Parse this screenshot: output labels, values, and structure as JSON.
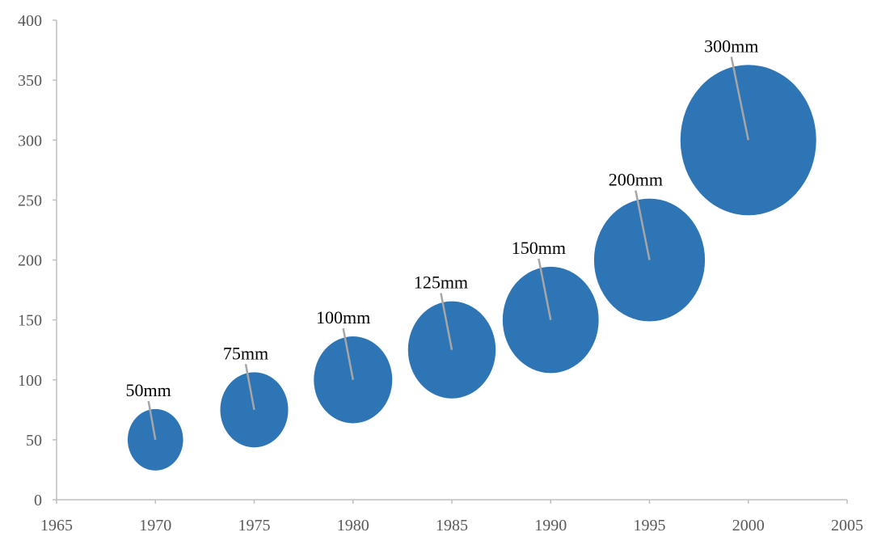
{
  "chart_data": {
    "type": "scatter",
    "title": "",
    "xlabel": "",
    "ylabel": "",
    "xlim": [
      1965,
      2005
    ],
    "ylim": [
      0,
      400
    ],
    "xticks": [
      "1965",
      "1970",
      "1975",
      "1980",
      "1985",
      "1990",
      "1995",
      "2000",
      "2005"
    ],
    "yticks": [
      "0",
      "50",
      "100",
      "150",
      "200",
      "250",
      "300",
      "350",
      "400"
    ],
    "grid": false,
    "legend": "none",
    "bubble_color": "#2e75b6",
    "series": [
      {
        "x": [
          1970,
          1975,
          1980,
          1985,
          1990,
          1995,
          2000
        ],
        "y": [
          50,
          75,
          100,
          125,
          150,
          200,
          300
        ],
        "size": [
          50,
          75,
          100,
          125,
          150,
          200,
          300
        ],
        "labels": [
          "50mm",
          "75mm",
          "100mm",
          "125mm",
          "150mm",
          "200mm",
          "300mm"
        ]
      }
    ]
  }
}
